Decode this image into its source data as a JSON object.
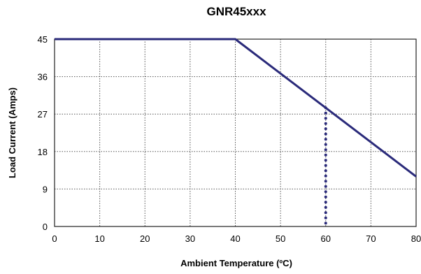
{
  "chart_data": {
    "type": "line",
    "title": "GNR45xxx",
    "xlabel": "Ambient Temperature (ºC)",
    "ylabel": "Load Current  (Amps)",
    "xlim": [
      0,
      80
    ],
    "ylim": [
      0,
      45
    ],
    "x_ticks": [
      0,
      10,
      20,
      30,
      40,
      50,
      60,
      70,
      80
    ],
    "y_ticks": [
      0,
      9,
      18,
      27,
      36,
      45
    ],
    "grid": true,
    "series": [
      {
        "color": "#2a2a7a",
        "style": "solid",
        "x": [
          0,
          40,
          80
        ],
        "y": [
          45,
          45,
          12
        ]
      },
      {
        "color": "#2a2a7a",
        "style": "dotted",
        "x": [
          60,
          60
        ],
        "y": [
          28.5,
          0
        ]
      }
    ]
  }
}
